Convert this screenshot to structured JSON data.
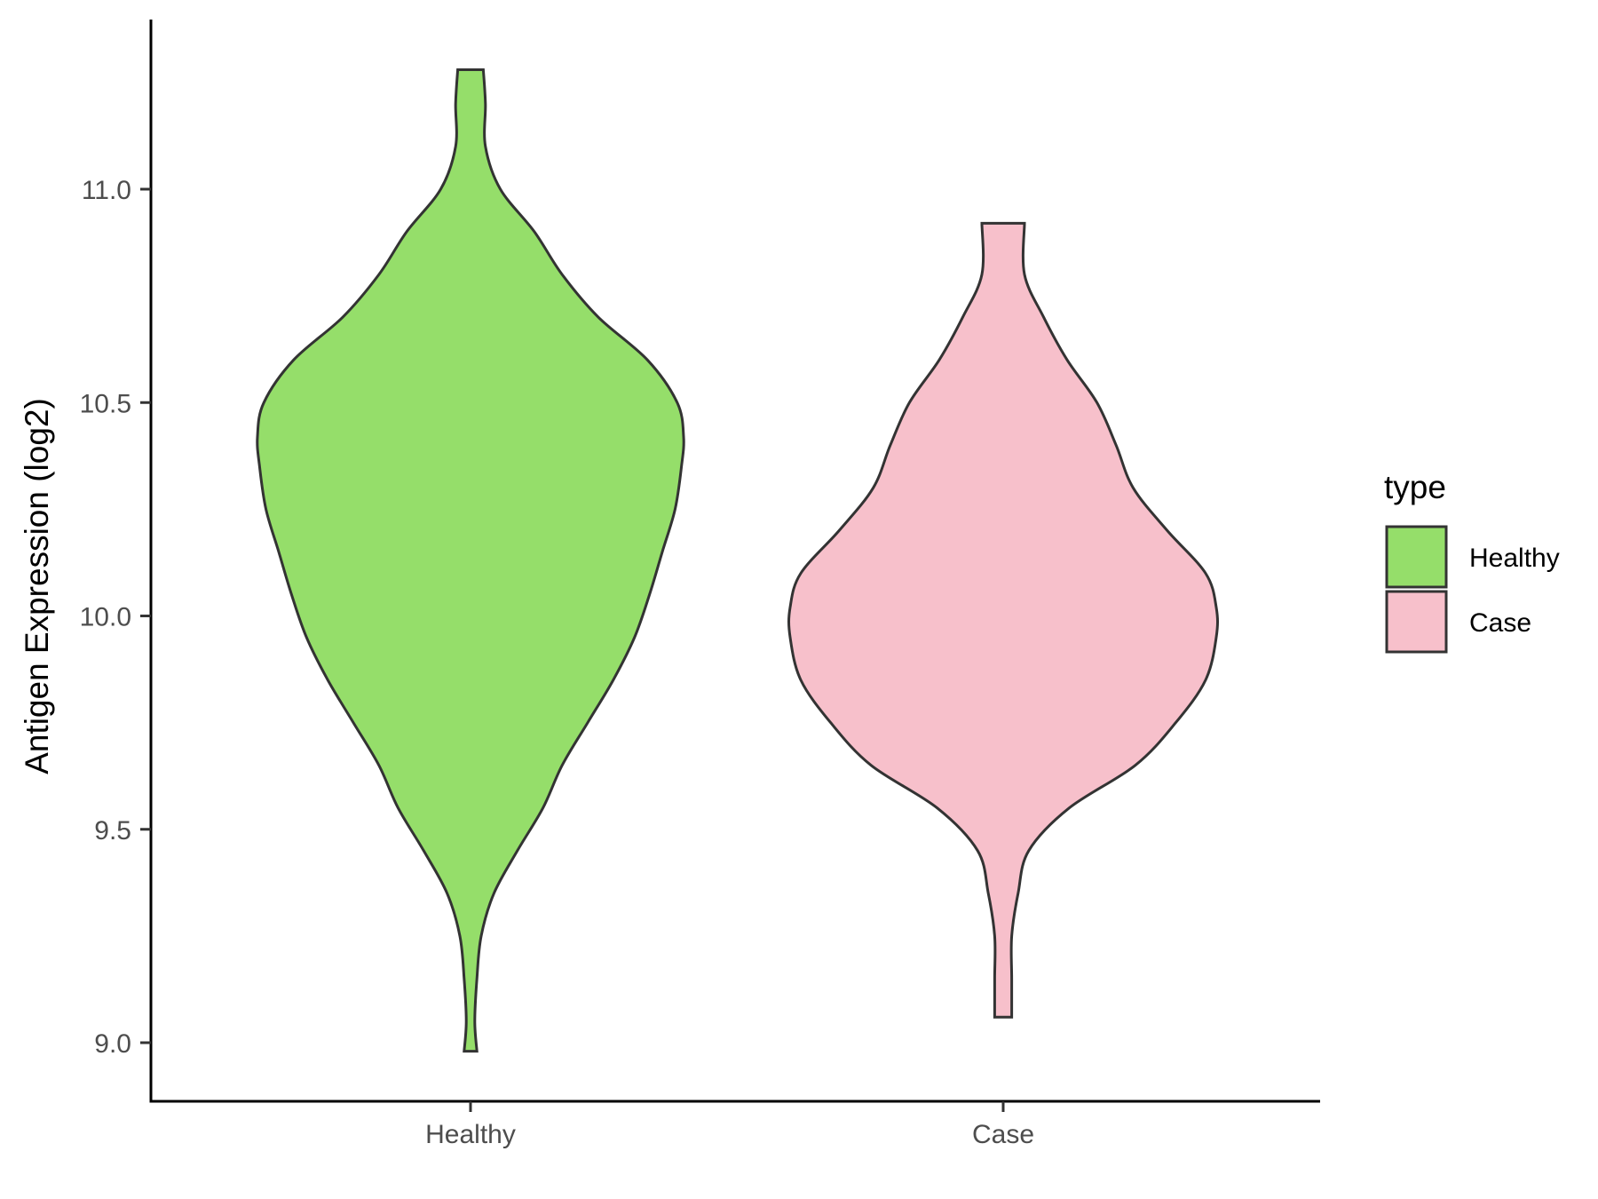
{
  "chart_data": {
    "type": "violin",
    "xlabel": "",
    "ylabel": "Antigen Expression (log2)",
    "ylim": [
      8.86,
      11.4
    ],
    "yticks": [
      "9.0",
      "9.5",
      "10.0",
      "10.5",
      "11.0"
    ],
    "categories": [
      "Healthy",
      "Case"
    ],
    "grid": false,
    "legend": {
      "title": "type",
      "position": "right",
      "entries": [
        "Healthy",
        "Case"
      ]
    },
    "colors": {
      "Healthy": "#95de6a",
      "Case": "#f7c0cb",
      "outline": "#333333"
    },
    "series": [
      {
        "name": "Healthy",
        "y_min": 8.98,
        "y_max": 11.28,
        "density_profile": [
          [
            8.98,
            0.03
          ],
          [
            9.05,
            0.02
          ],
          [
            9.15,
            0.03
          ],
          [
            9.25,
            0.05
          ],
          [
            9.35,
            0.11
          ],
          [
            9.45,
            0.22
          ],
          [
            9.55,
            0.34
          ],
          [
            9.65,
            0.43
          ],
          [
            9.75,
            0.55
          ],
          [
            9.85,
            0.67
          ],
          [
            9.95,
            0.77
          ],
          [
            10.05,
            0.84
          ],
          [
            10.15,
            0.9
          ],
          [
            10.25,
            0.96
          ],
          [
            10.35,
            0.99
          ],
          [
            10.42,
            1.0
          ],
          [
            10.5,
            0.97
          ],
          [
            10.6,
            0.83
          ],
          [
            10.7,
            0.6
          ],
          [
            10.8,
            0.43
          ],
          [
            10.9,
            0.3
          ],
          [
            11.0,
            0.14
          ],
          [
            11.1,
            0.07
          ],
          [
            11.2,
            0.07
          ],
          [
            11.28,
            0.06
          ]
        ]
      },
      {
        "name": "Case",
        "y_min": 9.06,
        "y_max": 10.92,
        "density_profile": [
          [
            9.06,
            0.04
          ],
          [
            9.15,
            0.04
          ],
          [
            9.25,
            0.04
          ],
          [
            9.35,
            0.07
          ],
          [
            9.45,
            0.12
          ],
          [
            9.55,
            0.31
          ],
          [
            9.65,
            0.62
          ],
          [
            9.75,
            0.81
          ],
          [
            9.85,
            0.95
          ],
          [
            9.95,
            1.0
          ],
          [
            10.02,
            1.0
          ],
          [
            10.1,
            0.95
          ],
          [
            10.2,
            0.77
          ],
          [
            10.3,
            0.61
          ],
          [
            10.4,
            0.53
          ],
          [
            10.5,
            0.44
          ],
          [
            10.6,
            0.3
          ],
          [
            10.7,
            0.19
          ],
          [
            10.8,
            0.1
          ],
          [
            10.92,
            0.1
          ]
        ]
      }
    ]
  }
}
